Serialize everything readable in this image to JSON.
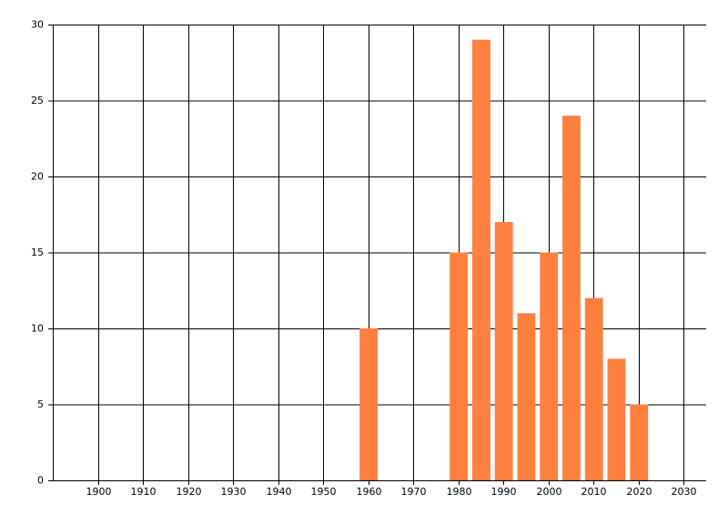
{
  "chart_data": {
    "type": "bar",
    "x": [
      1960,
      1980,
      1985,
      1990,
      1995,
      2000,
      2005,
      2010,
      2015,
      2020
    ],
    "values": [
      10,
      15,
      29,
      17,
      11,
      15,
      24,
      12,
      8,
      5
    ],
    "color": "#ff7f3f",
    "xlim": [
      1890,
      2035
    ],
    "xticks": [
      1900,
      1910,
      1920,
      1930,
      1940,
      1950,
      1960,
      1970,
      1980,
      1990,
      2000,
      2010,
      2020,
      2030
    ],
    "ylim": [
      0,
      30
    ],
    "yticks": [
      0,
      5,
      10,
      15,
      20,
      25,
      30
    ],
    "grid": true
  }
}
